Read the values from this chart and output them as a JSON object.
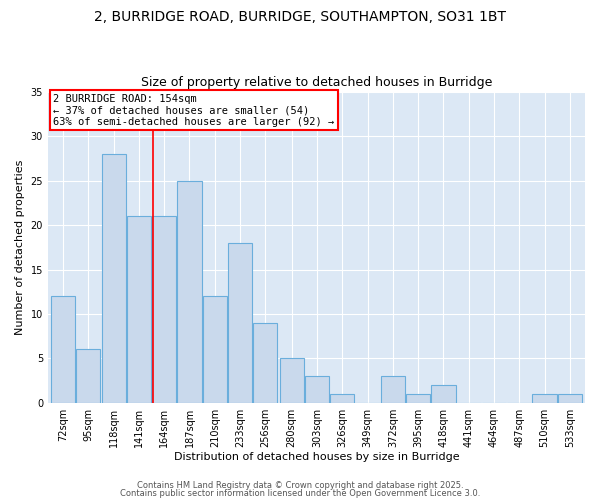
{
  "title1": "2, BURRIDGE ROAD, BURRIDGE, SOUTHAMPTON, SO31 1BT",
  "title2": "Size of property relative to detached houses in Burridge",
  "xlabel": "Distribution of detached houses by size in Burridge",
  "ylabel": "Number of detached properties",
  "bins": [
    72,
    95,
    118,
    141,
    164,
    187,
    210,
    233,
    256,
    280,
    303,
    326,
    349,
    372,
    395,
    418,
    441,
    464,
    487,
    510,
    533
  ],
  "counts": [
    12,
    6,
    28,
    21,
    21,
    25,
    12,
    18,
    9,
    5,
    3,
    1,
    0,
    3,
    1,
    2,
    0,
    0,
    0,
    1,
    1
  ],
  "bar_color": "#c9d9ec",
  "bar_edge_color": "#6aaedc",
  "red_line_x": 154,
  "annotation_line1": "2 BURRIDGE ROAD: 154sqm",
  "annotation_line2": "← 37% of detached houses are smaller (54)",
  "annotation_line3": "63% of semi-detached houses are larger (92) →",
  "annotation_box_color": "white",
  "annotation_box_edge_color": "red",
  "red_line_color": "red",
  "ylim": [
    0,
    35
  ],
  "yticks": [
    0,
    5,
    10,
    15,
    20,
    25,
    30,
    35
  ],
  "footnote1": "Contains HM Land Registry data © Crown copyright and database right 2025.",
  "footnote2": "Contains public sector information licensed under the Open Government Licence 3.0.",
  "bg_color": "#dce8f5",
  "title_fontsize": 10,
  "subtitle_fontsize": 9,
  "axis_label_fontsize": 8,
  "tick_fontsize": 7,
  "annotation_fontsize": 7.5,
  "footnote_fontsize": 6
}
